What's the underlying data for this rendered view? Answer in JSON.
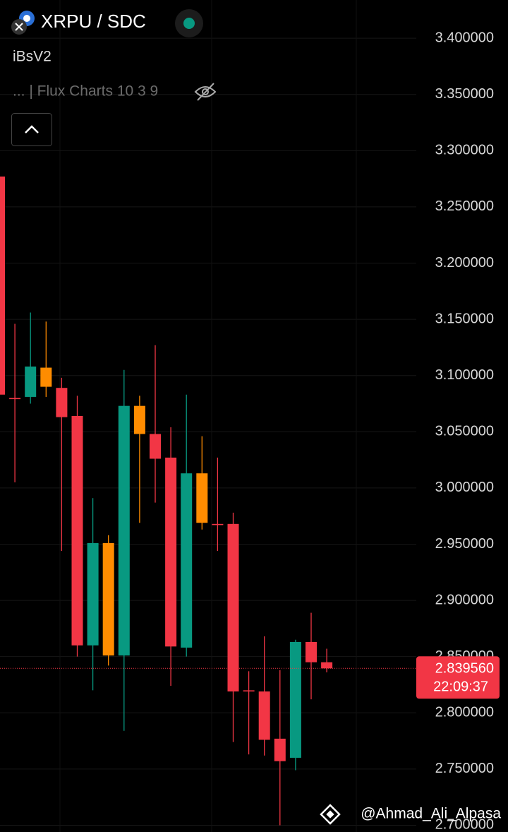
{
  "chart_data": {
    "type": "candlestick",
    "title": "XRPU / SDC",
    "subtitle": "iBsV2",
    "indicator": "... | Flux Charts 10 3 9",
    "watermark": "@Ahmad_Ali_Alpasa",
    "categories": [
      null,
      null,
      null,
      null,
      null,
      null,
      null,
      null,
      null,
      null,
      null,
      null,
      null,
      null,
      null,
      null,
      null,
      null,
      null,
      null,
      null,
      null
    ],
    "open": [
      3.277,
      3.08,
      3.081,
      3.107,
      3.089,
      3.064,
      2.86,
      2.951,
      2.851,
      3.073,
      3.048,
      3.027,
      2.858,
      3.013,
      2.968,
      2.968,
      2.82,
      2.819,
      2.777,
      2.76,
      2.863,
      2.845
    ],
    "high": [
      3.277,
      3.146,
      3.156,
      3.148,
      3.098,
      3.082,
      2.991,
      2.958,
      3.105,
      3.082,
      3.127,
      3.054,
      3.083,
      3.046,
      3.027,
      2.978,
      2.837,
      2.868,
      2.838,
      2.865,
      2.889,
      2.857
    ],
    "low": [
      3.083,
      3.005,
      3.075,
      3.081,
      2.944,
      2.85,
      2.82,
      2.842,
      2.784,
      2.969,
      2.987,
      2.824,
      2.85,
      2.963,
      2.944,
      2.774,
      2.763,
      2.762,
      2.7,
      2.749,
      2.812,
      2.836
    ],
    "close": [
      3.083,
      3.079,
      3.108,
      3.09,
      3.063,
      2.86,
      2.951,
      2.851,
      3.073,
      3.048,
      3.026,
      2.859,
      3.013,
      2.969,
      2.967,
      2.819,
      2.819,
      2.776,
      2.757,
      2.863,
      2.845,
      2.83956
    ],
    "colors": [
      "#f23645",
      "#f23645",
      "#089981",
      "#ff8c00",
      "#f23645",
      "#f23645",
      "#089981",
      "#ff8c00",
      "#089981",
      "#ff8c00",
      "#f23645",
      "#f23645",
      "#089981",
      "#ff8c00",
      "#f23645",
      "#f23645",
      "#f23645",
      "#f23645",
      "#f23645",
      "#089981",
      "#f23645",
      "#f23645"
    ],
    "last_price": {
      "value": 2.83956,
      "label": "2.839560",
      "color": "#f23645"
    },
    "countdown": "22:09:37",
    "ylim": [
      2.694,
      3.434
    ],
    "yticks": [
      {
        "value": 3.4,
        "label": "3.400000"
      },
      {
        "value": 3.35,
        "label": "3.350000"
      },
      {
        "value": 3.3,
        "label": "3.300000"
      },
      {
        "value": 3.25,
        "label": "3.250000"
      },
      {
        "value": 3.2,
        "label": "3.200000"
      },
      {
        "value": 3.15,
        "label": "3.150000"
      },
      {
        "value": 3.1,
        "label": "3.100000"
      },
      {
        "value": 3.05,
        "label": "3.050000"
      },
      {
        "value": 3.0,
        "label": "3.000000"
      },
      {
        "value": 2.95,
        "label": "2.950000"
      },
      {
        "value": 2.9,
        "label": "2.900000"
      },
      {
        "value": 2.85,
        "label": "2.850000"
      },
      {
        "value": 2.8,
        "label": "2.800000"
      },
      {
        "value": 2.75,
        "label": "2.750000"
      },
      {
        "value": 2.7,
        "label": "2.700000"
      }
    ],
    "grid": true
  }
}
